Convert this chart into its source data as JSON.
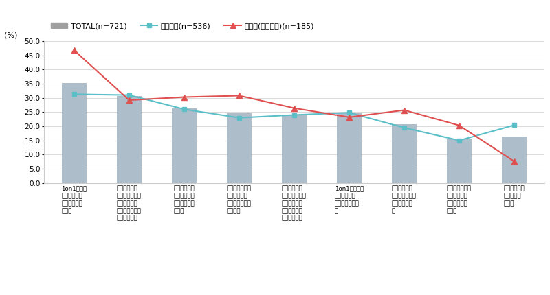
{
  "categories": [
    "1on1の相手\nをよりよく理\n解することが\nできた",
    "仕事や職場の\n課題・悩みをタ\nイムリーに相\n談・解決できる\nようになった",
    "意見や提言を\n聞く／聞いて\nもらえる場が\nできた",
    "キャリアや将来\nについて考え\nたり、話すこと\nができた",
    "仕事の成果に\n対してフィード\nバックをでき\nる／もらえる\nようになった",
    "1on1の相手と\n気兼ねなく話\nせるようになっ\nた",
    "職場全体でコ\nミュニケーショ\nンが活性化し\nた",
    "プライベートの\n悩みや困って\nることを相談\nできた",
    "効果や良さは\n感じられな\nかった"
  ],
  "total": [
    35.2,
    30.7,
    26.3,
    24.7,
    24.1,
    24.7,
    20.8,
    15.7,
    16.4
  ],
  "general": [
    31.3,
    31.0,
    26.0,
    23.0,
    24.0,
    24.8,
    19.5,
    15.0,
    20.4
  ],
  "manager": [
    46.8,
    29.2,
    30.3,
    30.8,
    26.4,
    23.2,
    25.7,
    20.3,
    7.6
  ],
  "bar_color": "#adbdca",
  "general_color": "#5bbfc8",
  "manager_color": "#e05050",
  "total_color": "#a0a0a0",
  "ylim": [
    0,
    50
  ],
  "yticks": [
    0,
    5.0,
    10.0,
    15.0,
    20.0,
    25.0,
    30.0,
    35.0,
    40.0,
    45.0,
    50.0
  ],
  "ylabel": "(%)",
  "legend_total": "TOTAL(n=721)",
  "legend_general": "一般社員(n=536)",
  "legend_manager": "管理職(課長以上)(n=185)",
  "bg_color": "#ffffff"
}
